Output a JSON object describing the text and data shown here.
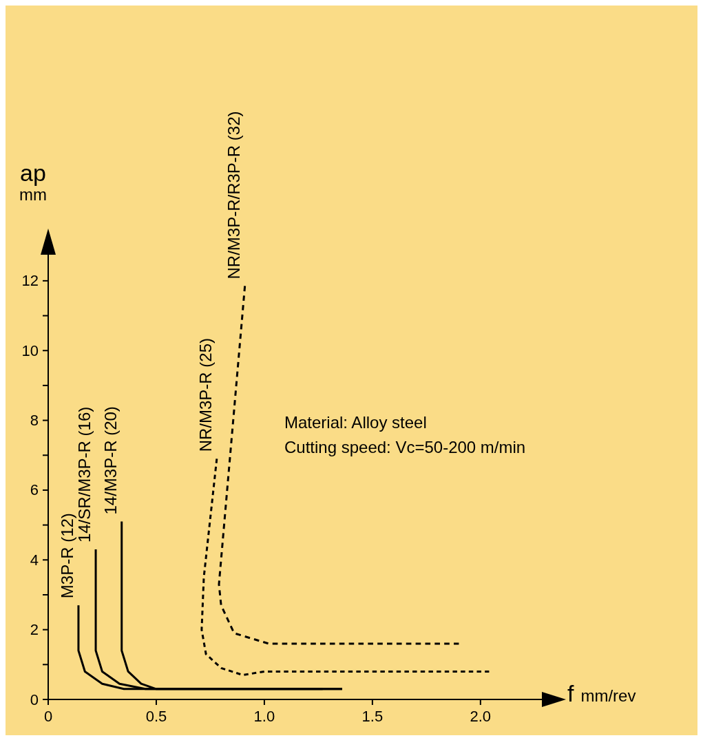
{
  "chart_data": {
    "type": "line",
    "xlabel": "f mm/rev",
    "ylabel": "ap mm",
    "annotations": [
      "Material: Alloy steel",
      "Cutting speed: Vc=50-200 m/min"
    ],
    "xlim": [
      0,
      2.3
    ],
    "ylim": [
      0,
      13.3
    ],
    "xticks": [
      0,
      0.5,
      {
        "value": 1,
        "label": "1.0"
      },
      1.5,
      {
        "value": 2,
        "label": "2.0"
      }
    ],
    "yticks": [
      0,
      {
        "value": 1,
        "label": null
      },
      2,
      {
        "value": 3,
        "label": null
      },
      4,
      {
        "value": 5,
        "label": null
      },
      6,
      {
        "value": 7,
        "label": null
      },
      8,
      {
        "value": 9,
        "label": null
      },
      10,
      {
        "value": 11,
        "label": null
      },
      12
    ],
    "grid": false,
    "legend": false,
    "marker": "none",
    "series": [
      {
        "name": "M3P-R (12)",
        "color": "#000000",
        "line_style": "solid",
        "x": [
          0.14,
          0.14,
          0.17,
          0.25,
          0.35,
          1.27
        ],
        "values": [
          2.7,
          1.4,
          0.8,
          0.45,
          0.3,
          0.3
        ]
      },
      {
        "name": "14/SR/M3P-R (16)",
        "color": "#000000",
        "line_style": "solid",
        "x": [
          0.22,
          0.22,
          0.25,
          0.33,
          0.45,
          1.36
        ],
        "values": [
          4.3,
          1.4,
          0.8,
          0.45,
          0.3,
          0.3
        ]
      },
      {
        "name": "14/M3P-R (20)",
        "color": "#000000",
        "line_style": "solid",
        "x": [
          0.34,
          0.34,
          0.37,
          0.43,
          0.5,
          1.36
        ],
        "values": [
          5.1,
          1.4,
          0.8,
          0.45,
          0.3,
          0.3
        ]
      },
      {
        "name": "NR/M3P-R (25)",
        "color": "#000000",
        "line_style": "dashed",
        "x": [
          0.78,
          0.72,
          0.71,
          0.73,
          0.8,
          0.9,
          1.0,
          2.04
        ],
        "values": [
          6.9,
          3.5,
          2.0,
          1.3,
          0.9,
          0.7,
          0.8,
          0.8
        ]
      },
      {
        "name": "NR/M3P-R/R3P-R (32)",
        "color": "#000000",
        "line_style": "dashed",
        "x": [
          0.91,
          0.79,
          0.8,
          0.86,
          1.02,
          1.9
        ],
        "values": [
          11.85,
          3.3,
          2.7,
          1.9,
          1.6,
          1.6
        ]
      }
    ]
  }
}
